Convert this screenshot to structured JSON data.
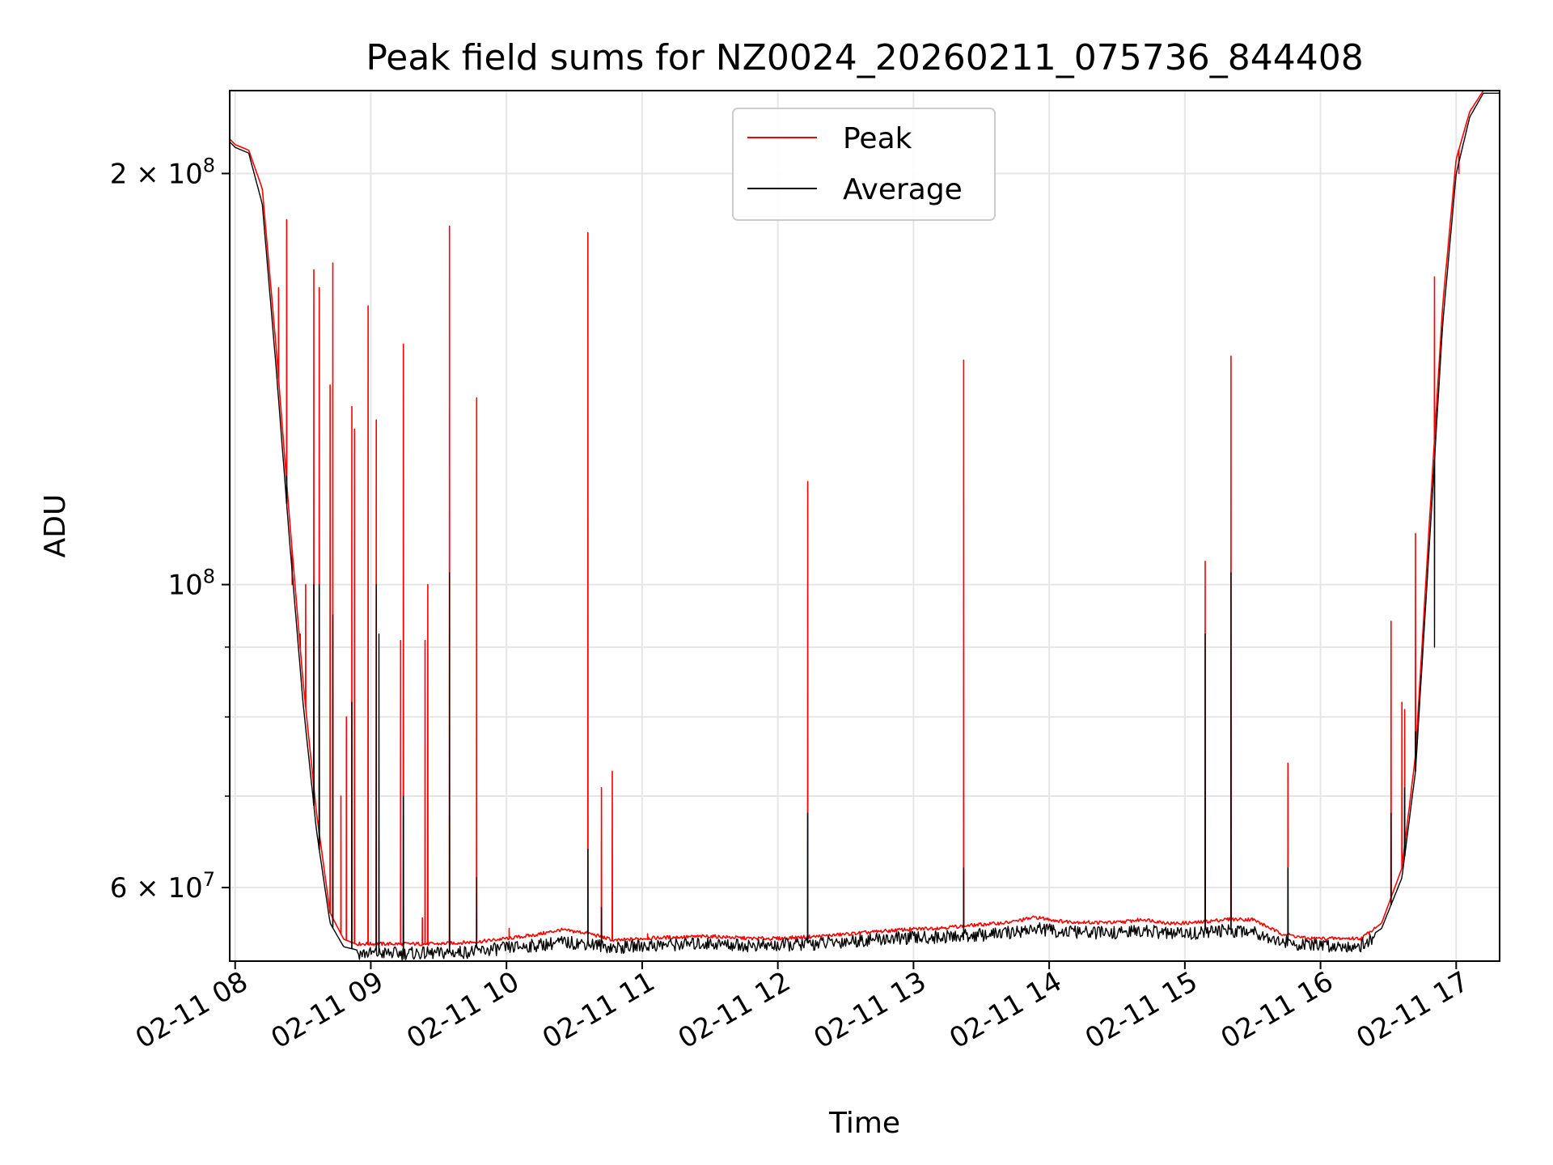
{
  "chart_data": {
    "type": "line",
    "title": "Peak field sums for NZ0024_20260211_075736_844408",
    "xlabel": "Time",
    "ylabel": "ADU",
    "yscale": "log",
    "xlim": [
      7.96,
      17.32
    ],
    "ylim": [
      53000000,
      230000000
    ],
    "grid": true,
    "legend_position": "top-center",
    "x_ticks": [
      {
        "value": 8,
        "label": "02-11 08"
      },
      {
        "value": 9,
        "label": "02-11 09"
      },
      {
        "value": 10,
        "label": "02-11 10"
      },
      {
        "value": 11,
        "label": "02-11 11"
      },
      {
        "value": 12,
        "label": "02-11 12"
      },
      {
        "value": 13,
        "label": "02-11 13"
      },
      {
        "value": 14,
        "label": "02-11 14"
      },
      {
        "value": 15,
        "label": "02-11 15"
      },
      {
        "value": 16,
        "label": "02-11 16"
      },
      {
        "value": 17,
        "label": "02-11 17"
      }
    ],
    "y_ticks": [
      {
        "value": 60000000,
        "label_base": "6 × 10",
        "label_exp": "7"
      },
      {
        "value": 100000000,
        "label_base": "10",
        "label_exp": "8"
      },
      {
        "value": 200000000,
        "label_base": "2 × 10",
        "label_exp": "8"
      }
    ],
    "y_minor_ticks": [
      70000000,
      80000000,
      90000000
    ],
    "series": [
      {
        "name": "Peak",
        "color": "#ff0000",
        "x": [
          7.96,
          8.0,
          8.1,
          8.2,
          8.3,
          8.4,
          8.5,
          8.6,
          8.7,
          8.8,
          8.9,
          9.0,
          9.2,
          9.5,
          9.8,
          10.0,
          10.2,
          10.4,
          10.6,
          10.8,
          11.0,
          11.2,
          11.5,
          11.8,
          12.0,
          12.3,
          12.6,
          12.9,
          13.2,
          13.5,
          13.7,
          13.9,
          14.1,
          14.3,
          14.5,
          14.7,
          14.9,
          15.1,
          15.3,
          15.5,
          15.7,
          15.9,
          16.1,
          16.3,
          16.45,
          16.6,
          16.7,
          16.8,
          16.9,
          17.0,
          17.1,
          17.2,
          17.32
        ],
        "values": [
          212000000,
          210000000,
          208000000,
          195000000,
          150000000,
          112000000,
          85000000,
          68000000,
          57500000,
          55000000,
          54500000,
          54500000,
          54500000,
          54500000,
          54700000,
          55000000,
          55300000,
          55800000,
          55500000,
          54800000,
          55000000,
          55100000,
          55200000,
          55000000,
          55000000,
          55200000,
          55500000,
          55800000,
          56000000,
          56300000,
          56500000,
          57000000,
          56600000,
          56500000,
          56500000,
          56800000,
          56400000,
          56500000,
          56800000,
          56800000,
          55500000,
          55000000,
          55000000,
          55000000,
          56500000,
          62000000,
          75000000,
          110000000,
          160000000,
          205000000,
          222000000,
          230000000,
          230000000
        ],
        "spikes": [
          [
            8.32,
            165000000
          ],
          [
            8.38,
            185000000
          ],
          [
            8.42,
            100000000
          ],
          [
            8.48,
            92000000
          ],
          [
            8.52,
            100000000
          ],
          [
            8.58,
            170000000
          ],
          [
            8.62,
            165000000
          ],
          [
            8.7,
            140000000
          ],
          [
            8.72,
            172000000
          ],
          [
            8.78,
            70000000
          ],
          [
            8.82,
            80000000
          ],
          [
            8.86,
            135000000
          ],
          [
            8.88,
            130000000
          ],
          [
            8.98,
            160000000
          ],
          [
            9.04,
            132000000
          ],
          [
            9.22,
            91000000
          ],
          [
            9.24,
            150000000
          ],
          [
            9.38,
            57000000
          ],
          [
            9.4,
            91000000
          ],
          [
            9.42,
            100000000
          ],
          [
            9.58,
            183000000
          ],
          [
            9.78,
            137000000
          ],
          [
            10.02,
            56000000
          ],
          [
            10.6,
            181000000
          ],
          [
            10.7,
            71000000
          ],
          [
            10.78,
            73000000
          ],
          [
            11.04,
            55500000
          ],
          [
            12.22,
            119000000
          ],
          [
            13.37,
            146000000
          ],
          [
            15.15,
            104000000
          ],
          [
            15.34,
            147000000
          ],
          [
            15.76,
            74000000
          ],
          [
            16.52,
            94000000
          ],
          [
            16.6,
            82000000
          ],
          [
            16.62,
            81000000
          ],
          [
            16.7,
            109000000
          ],
          [
            16.84,
            168000000
          ],
          [
            17.02,
            200000000
          ]
        ]
      },
      {
        "name": "Average",
        "color": "#000000",
        "x": [
          7.96,
          8.0,
          8.1,
          8.2,
          8.3,
          8.4,
          8.5,
          8.6,
          8.7,
          8.8,
          8.9,
          9.0,
          9.2,
          9.5,
          9.8,
          10.0,
          10.2,
          10.4,
          10.6,
          10.8,
          11.0,
          11.2,
          11.5,
          11.8,
          12.0,
          12.3,
          12.6,
          12.9,
          13.2,
          13.5,
          13.7,
          13.9,
          14.1,
          14.3,
          14.5,
          14.7,
          14.9,
          15.1,
          15.3,
          15.5,
          15.7,
          15.9,
          16.1,
          16.3,
          16.45,
          16.6,
          16.7,
          16.8,
          16.9,
          17.0,
          17.1,
          17.2,
          17.32
        ],
        "values": [
          211000000,
          209000000,
          207000000,
          190000000,
          145000000,
          108000000,
          82000000,
          66000000,
          56500000,
          54300000,
          54000000,
          54000000,
          54000000,
          54000000,
          54200000,
          54500000,
          54700000,
          55000000,
          54900000,
          54500000,
          54700000,
          54800000,
          54900000,
          54700000,
          54700000,
          54900000,
          55200000,
          55400000,
          55500000,
          55700000,
          55900000,
          56300000,
          56000000,
          55900000,
          55900000,
          56100000,
          55800000,
          55900000,
          56100000,
          56100000,
          55100000,
          54700000,
          54700000,
          54700000,
          56000000,
          61000000,
          73000000,
          106000000,
          155000000,
          200000000,
          220000000,
          229000000,
          229000000
        ],
        "spikes": [
          [
            8.38,
            120000000
          ],
          [
            8.58,
            100000000
          ],
          [
            8.62,
            100000000
          ],
          [
            8.72,
            95000000
          ],
          [
            8.86,
            82000000
          ],
          [
            9.04,
            100000000
          ],
          [
            9.06,
            92000000
          ],
          [
            9.24,
            70000000
          ],
          [
            9.58,
            102000000
          ],
          [
            9.78,
            61000000
          ],
          [
            10.6,
            64000000
          ],
          [
            10.7,
            58000000
          ],
          [
            12.22,
            68000000
          ],
          [
            13.37,
            62000000
          ],
          [
            15.15,
            92000000
          ],
          [
            15.34,
            102000000
          ],
          [
            15.76,
            62000000
          ],
          [
            16.52,
            68000000
          ],
          [
            16.62,
            71000000
          ],
          [
            16.7,
            78000000
          ],
          [
            16.84,
            90000000
          ]
        ]
      }
    ]
  }
}
